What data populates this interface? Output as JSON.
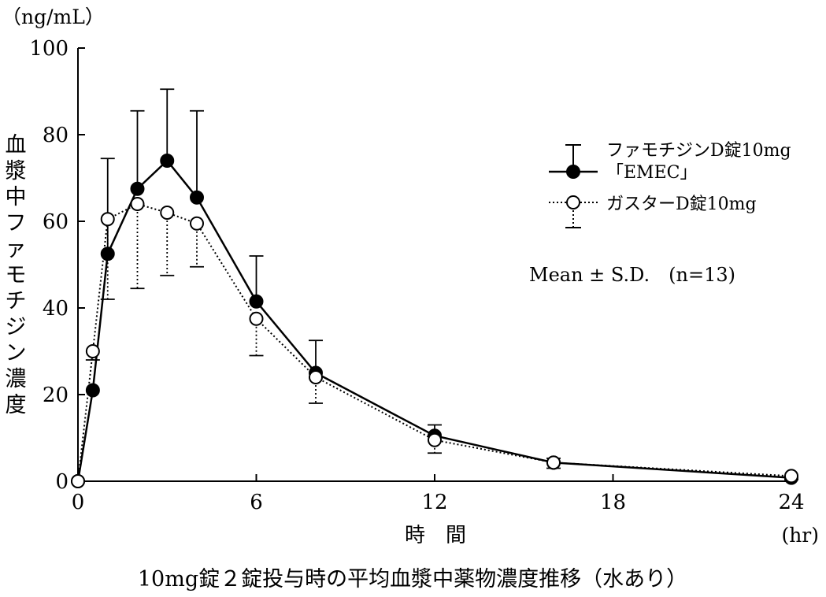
{
  "chart_data": {
    "type": "line",
    "title": "10mg錠２錠投与時の平均血漿中薬物濃度推移（水あり）",
    "xlabel": "時　間",
    "xunit": "(hr)",
    "ylabel": "血漿中ファモチジン濃度",
    "yunit": "（ng/mL）",
    "xlim": [
      0,
      24
    ],
    "ylim": [
      0,
      100
    ],
    "xticks": [
      0,
      6,
      12,
      18,
      24
    ],
    "yticks": [
      0,
      20,
      40,
      60,
      80,
      100
    ],
    "annotation": "Mean ± S.D.　(n=13)",
    "legend_position": "top-right",
    "series": [
      {
        "name": "ファモチジンD錠10mg「EMEC」",
        "marker": "filled-circle",
        "line": "solid",
        "color": "#000000",
        "x": [
          0,
          0.5,
          1,
          2,
          3,
          4,
          6,
          8,
          12,
          16,
          24
        ],
        "y": [
          0,
          21,
          52.5,
          67.5,
          74,
          65.5,
          41.5,
          25,
          10.5,
          4.3,
          0.8
        ],
        "sd": [
          0,
          0,
          22,
          18,
          16.5,
          20,
          10.5,
          7.5,
          2.5,
          1,
          0.4
        ]
      },
      {
        "name": "ガスターD錠10mg",
        "marker": "open-circle",
        "line": "dotted",
        "color": "#000000",
        "x": [
          0,
          0.5,
          1,
          2,
          3,
          4,
          6,
          8,
          12,
          16,
          24
        ],
        "y": [
          0,
          30,
          60.5,
          64,
          62,
          59.5,
          37.5,
          24,
          9.5,
          4.3,
          1.2
        ],
        "sd": [
          0,
          2,
          18.5,
          19.5,
          14.5,
          10,
          8.5,
          6,
          3,
          1.3,
          0.8
        ]
      }
    ]
  }
}
